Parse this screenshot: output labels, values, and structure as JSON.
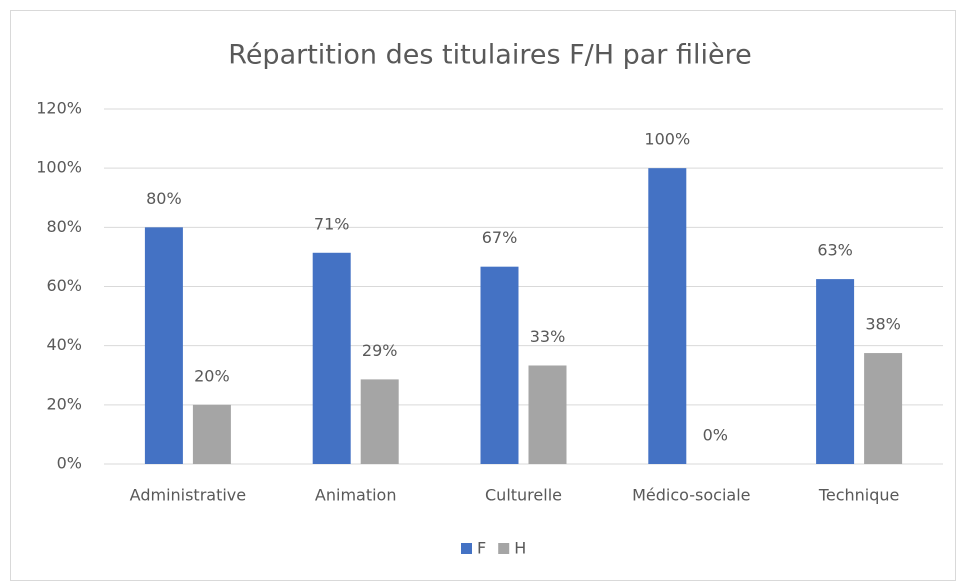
{
  "chart_data": {
    "type": "bar",
    "title": "Répartition des titulaires F/H par filière",
    "categories": [
      "Administrative",
      "Animation",
      "Culturelle",
      "Médico-sociale",
      "Technique"
    ],
    "series": [
      {
        "name": "F",
        "color": "#4472c4",
        "values": [
          80,
          71.4,
          66.7,
          100,
          62.5
        ],
        "value_labels": [
          "80%",
          "71%",
          "67%",
          "100%",
          "63%"
        ]
      },
      {
        "name": "H",
        "color": "#a5a5a5",
        "values": [
          20,
          28.6,
          33.3,
          0,
          37.5
        ],
        "value_labels": [
          "20%",
          "29%",
          "33%",
          "0%",
          "38%"
        ]
      }
    ],
    "ylim": [
      0,
      120
    ],
    "yticks": [
      {
        "value": 0,
        "label": "0%"
      },
      {
        "value": 20,
        "label": "20%"
      },
      {
        "value": 40,
        "label": "40%"
      },
      {
        "value": 60,
        "label": "60%"
      },
      {
        "value": 80,
        "label": "80%"
      },
      {
        "value": 100,
        "label": "100%"
      },
      {
        "value": 120,
        "label": "120%"
      }
    ],
    "grid": true,
    "legend": "bottom"
  }
}
